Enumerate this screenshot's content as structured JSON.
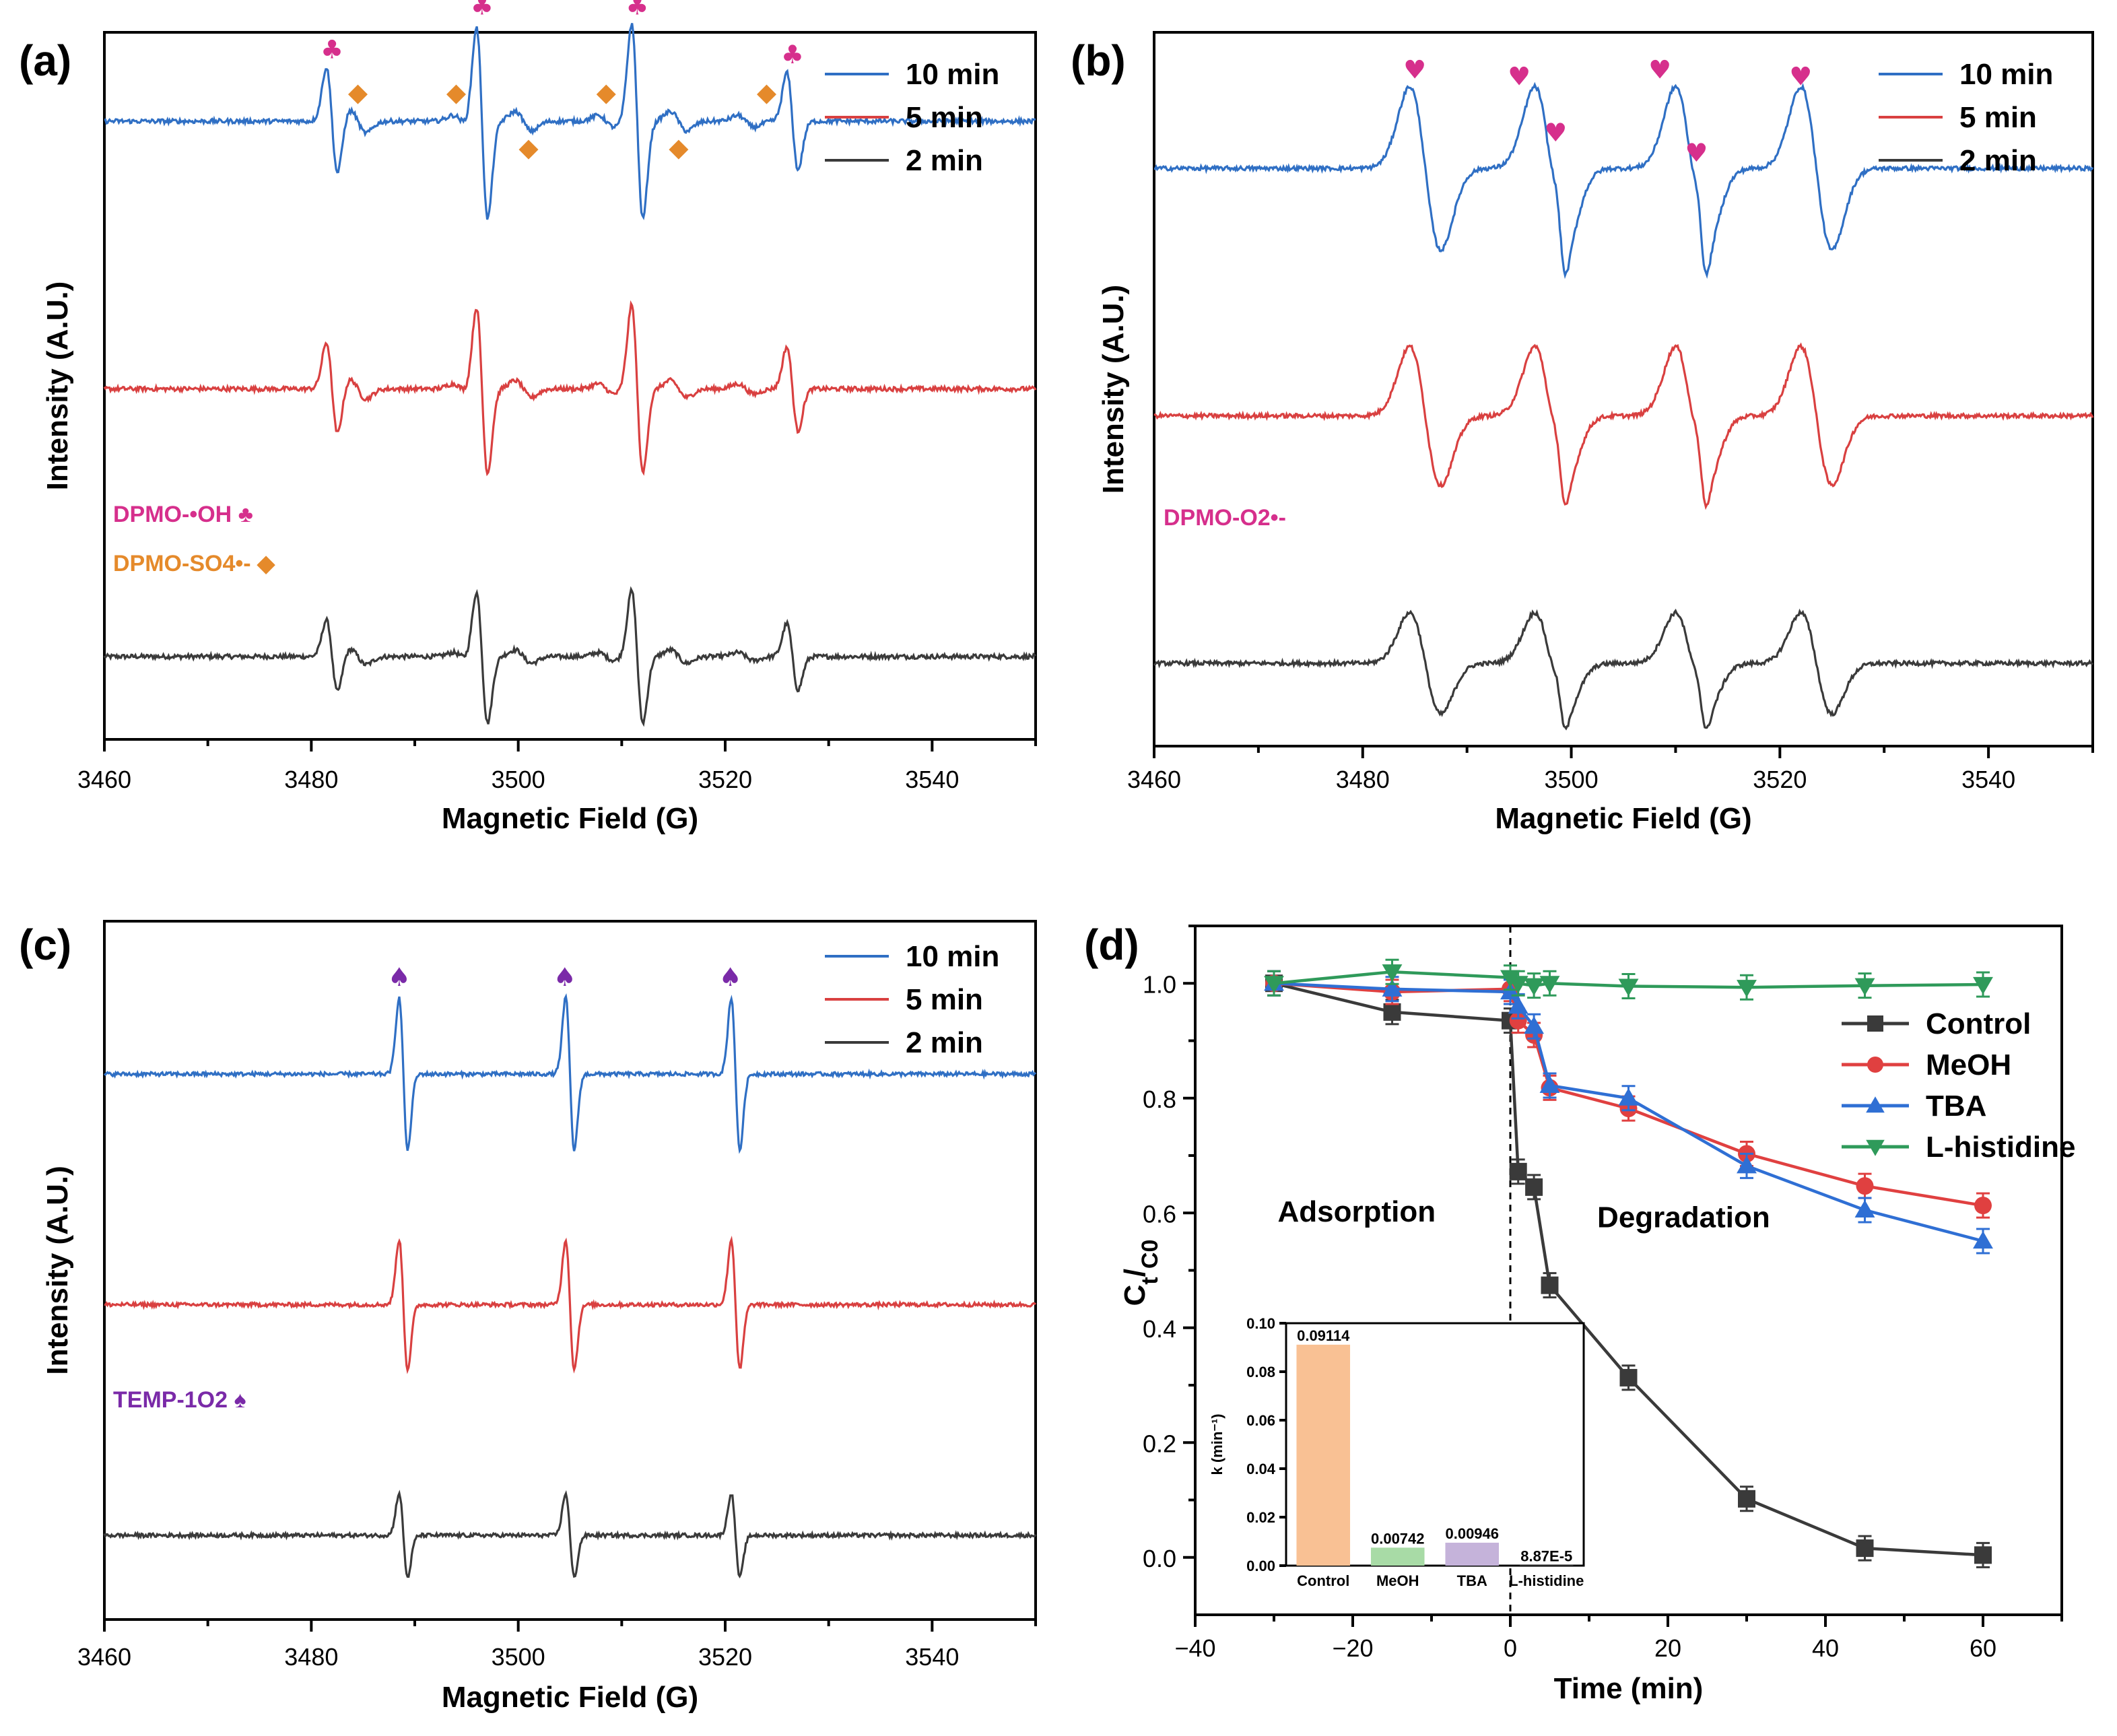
{
  "chart_data": [
    {
      "panel": "(a)",
      "type": "line",
      "xlabel": "Magnetic Field (G)",
      "ylabel": "Intensity (A.U.)",
      "xlim": [
        3460,
        3550
      ],
      "xticks": [
        "3460",
        "3480",
        "3500",
        "3520",
        "3540"
      ],
      "series": [
        {
          "name": "2 min",
          "color": "#3a3a3a",
          "baseline": 0.0,
          "scale": 0.75
        },
        {
          "name": "5 min",
          "color": "#d94040",
          "baseline": 1.0,
          "scale": 0.95
        },
        {
          "name": "10 min",
          "color": "#2f6fc4",
          "baseline": 2.0,
          "scale": 1.1
        }
      ],
      "peaks": {
        "centers": [
          3482.0,
          3496.5,
          3511.5,
          3526.5
        ],
        "amps": [
          0.55,
          1.0,
          1.0,
          0.5
        ],
        "width": 0.55
      },
      "minor_peaks": {
        "centers": [
          3484.5,
          3494.5,
          3500.5,
          3508.5,
          3515.5,
          3522.0
        ],
        "amps": [
          0.12,
          0.06,
          0.1,
          0.06,
          0.1,
          0.06
        ],
        "width": 0.8
      },
      "marker_symbols": {
        "club": "♣",
        "diamond": "◆"
      },
      "club_positions": [
        3482.0,
        3496.5,
        3511.5,
        3526.5
      ],
      "diamond_positions": [
        3484.5,
        3494.0,
        3501.0,
        3508.5,
        3515.5,
        3524.0
      ],
      "annotations": [
        {
          "text": "DPMO-•OH ♣",
          "color": "#d62f8c"
        },
        {
          "text": "DPMO-SO4•- ◆",
          "color": "#e58a2b"
        }
      ]
    },
    {
      "panel": "(b)",
      "type": "line",
      "xlabel": "Magnetic Field (G)",
      "ylabel": "Intensity (A.U.)",
      "xlim": [
        3460,
        3550
      ],
      "xticks": [
        "3460",
        "3480",
        "3500",
        "3520",
        "3540"
      ],
      "series": [
        {
          "name": "2 min",
          "color": "#3a3a3a",
          "baseline": 0.0,
          "scale": 0.62
        },
        {
          "name": "5 min",
          "color": "#d94040",
          "baseline": 1.0,
          "scale": 0.85
        },
        {
          "name": "10 min",
          "color": "#2f6fc4",
          "baseline": 2.0,
          "scale": 1.0
        }
      ],
      "peaks": {
        "centers": [
          3486.0,
          3498.0,
          3511.5,
          3523.5
        ],
        "amps": [
          1.0,
          1.0,
          1.0,
          1.0
        ],
        "width": 1.5
      },
      "minor_peaks": {
        "centers": [
          3499.0,
          3512.5
        ],
        "amps": [
          0.3,
          0.3
        ],
        "width": 0.45
      },
      "marker_symbols": {
        "heart": "♥"
      },
      "heart_positions": [
        3485.0,
        3495.0,
        3498.5,
        3508.5,
        3512.0,
        3522.0
      ],
      "annotations": [
        {
          "text": "DPMO-O2•-",
          "color": "#d62f8c"
        }
      ]
    },
    {
      "panel": "(c)",
      "type": "line",
      "xlabel": "Magnetic Field (G)",
      "ylabel": "Intensity (A.U.)",
      "xlim": [
        3460,
        3550
      ],
      "xticks": [
        "3460",
        "3480",
        "3500",
        "3520",
        "3540"
      ],
      "series": [
        {
          "name": "2 min",
          "color": "#3a3a3a",
          "baseline": 0.0,
          "scale": 0.55
        },
        {
          "name": "5 min",
          "color": "#d94040",
          "baseline": 1.0,
          "scale": 0.85
        },
        {
          "name": "10 min",
          "color": "#2f6fc4",
          "baseline": 2.0,
          "scale": 1.0
        }
      ],
      "peaks": {
        "centers": [
          3488.9,
          3505.0,
          3521.0
        ],
        "amps": [
          1.0,
          1.0,
          1.0
        ],
        "width": 0.42
      },
      "minor_peaks": {
        "centers": [],
        "amps": [],
        "width": 1.0
      },
      "marker_symbols": {
        "spade": "♠"
      },
      "spade_positions": [
        3488.5,
        3504.5,
        3520.5
      ],
      "annotations": [
        {
          "text": "TEMP-1O2 ♠",
          "color": "#7a2aa8"
        }
      ]
    },
    {
      "panel": "(d)",
      "type": "line",
      "xlabel": "Time (min)",
      "ylabel": "Ct/C0",
      "xlim": [
        -40,
        70
      ],
      "ylim": [
        -0.1,
        1.1
      ],
      "xticks": [
        -40,
        -20,
        0,
        20,
        40,
        60
      ],
      "yticks": [
        0.0,
        0.2,
        0.4,
        0.6,
        0.8,
        1.0
      ],
      "region_labels": [
        "Adsorption",
        "Degradation"
      ],
      "series": [
        {
          "name": "Control",
          "color": "#3a3a3a",
          "marker": "square",
          "x": [
            -30,
            -15,
            0,
            1,
            3,
            5,
            15,
            30,
            45,
            60
          ],
          "y": [
            1.0,
            0.95,
            0.935,
            0.672,
            0.645,
            0.474,
            0.313,
            0.102,
            0.016,
            0.004
          ]
        },
        {
          "name": "MeOH",
          "color": "#e04040",
          "marker": "circle",
          "x": [
            -30,
            -15,
            0,
            1,
            3,
            5,
            15,
            30,
            45,
            60
          ],
          "y": [
            1.0,
            0.985,
            0.99,
            0.935,
            0.91,
            0.818,
            0.782,
            0.703,
            0.647,
            0.613
          ]
        },
        {
          "name": "TBA",
          "color": "#2f6fd4",
          "marker": "triangle-up",
          "x": [
            -30,
            -15,
            0,
            1,
            3,
            5,
            15,
            30,
            45,
            60
          ],
          "y": [
            1.0,
            0.99,
            0.985,
            0.96,
            0.925,
            0.822,
            0.8,
            0.682,
            0.605,
            0.551
          ]
        },
        {
          "name": "L-histidine",
          "color": "#2f9a5a",
          "marker": "triangle-down",
          "x": [
            -30,
            -15,
            0,
            1,
            3,
            5,
            15,
            30,
            45,
            60
          ],
          "y": [
            1.0,
            1.02,
            1.01,
            1.0,
            0.996,
            1.0,
            0.995,
            0.993,
            0.996,
            0.998
          ]
        }
      ],
      "inset": {
        "type": "bar",
        "ylabel": "k (min⁻¹)",
        "ylim": [
          0,
          0.1
        ],
        "yticks": [
          "0.00",
          "0.02",
          "0.04",
          "0.06",
          "0.08",
          "0.10"
        ],
        "categories": [
          "Control",
          "MeOH",
          "TBA",
          "L-histidine"
        ],
        "values": [
          0.09114,
          0.00742,
          0.00946,
          8.87e-05
        ],
        "value_labels": [
          "0.09114",
          "0.00742",
          "0.00946",
          "8.87E-5"
        ],
        "colors": [
          "#f9c194",
          "#a8dba6",
          "#c5b3da",
          "#cccccc"
        ]
      }
    }
  ]
}
